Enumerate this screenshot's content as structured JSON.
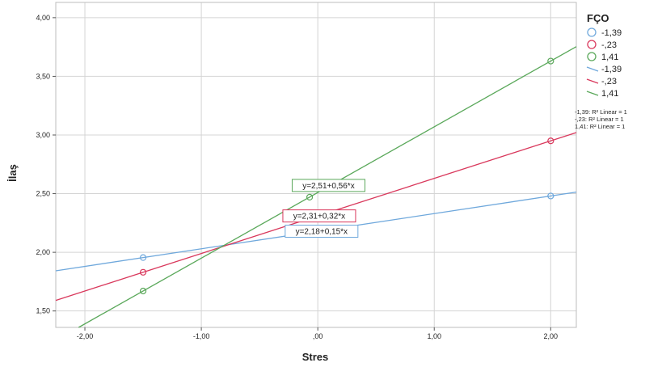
{
  "chart_data": {
    "type": "scatter",
    "title": "",
    "xlabel": "Stres",
    "ylabel": "İlaş",
    "xlim": [
      -2.25,
      2.22
    ],
    "ylim": [
      1.36,
      4.13
    ],
    "x_ticks": [
      -2.0,
      -1.0,
      0.0,
      1.0,
      2.0
    ],
    "x_tick_labels": [
      "-2,00",
      "-1,00",
      ",00",
      "1,00",
      "2,00"
    ],
    "y_ticks": [
      1.5,
      2.0,
      2.5,
      3.0,
      3.5,
      4.0
    ],
    "y_tick_labels": [
      "1,50",
      "2,00",
      "2,50",
      "3,00",
      "3,50",
      "4,00"
    ],
    "grid": true,
    "legend_title": "FÇO",
    "legend_position": "right",
    "series": [
      {
        "name": "-1,39",
        "color": "#6fa8dc",
        "points": [
          [
            -1.5,
            1.955
          ],
          [
            2.0,
            2.48
          ]
        ],
        "line": {
          "intercept": 2.18,
          "slope": 0.15,
          "label": "y=2,18+0,15*x",
          "label_x": -0.28,
          "label_y": 2.18
        }
      },
      {
        "name": "-,23",
        "color": "#d9385c",
        "points": [
          [
            -1.5,
            1.83
          ],
          [
            2.0,
            2.95
          ]
        ],
        "line": {
          "intercept": 2.31,
          "slope": 0.32,
          "label": "y=2,31+0,32*x",
          "label_x": -0.3,
          "label_y": 2.31
        }
      },
      {
        "name": "1,41",
        "color": "#5aa85a",
        "points": [
          [
            -1.5,
            1.67
          ],
          [
            -0.07,
            2.47
          ],
          [
            2.0,
            3.63
          ]
        ],
        "line": {
          "intercept": 2.51,
          "slope": 0.56,
          "label": "y=2,51+0,56*x",
          "label_x": -0.22,
          "label_y": 2.57
        }
      }
    ],
    "r2_notes": [
      "-1,39: R² Linear = 1",
      "-,23: R² Linear = 1",
      "1,41: R² Linear = 1"
    ]
  }
}
